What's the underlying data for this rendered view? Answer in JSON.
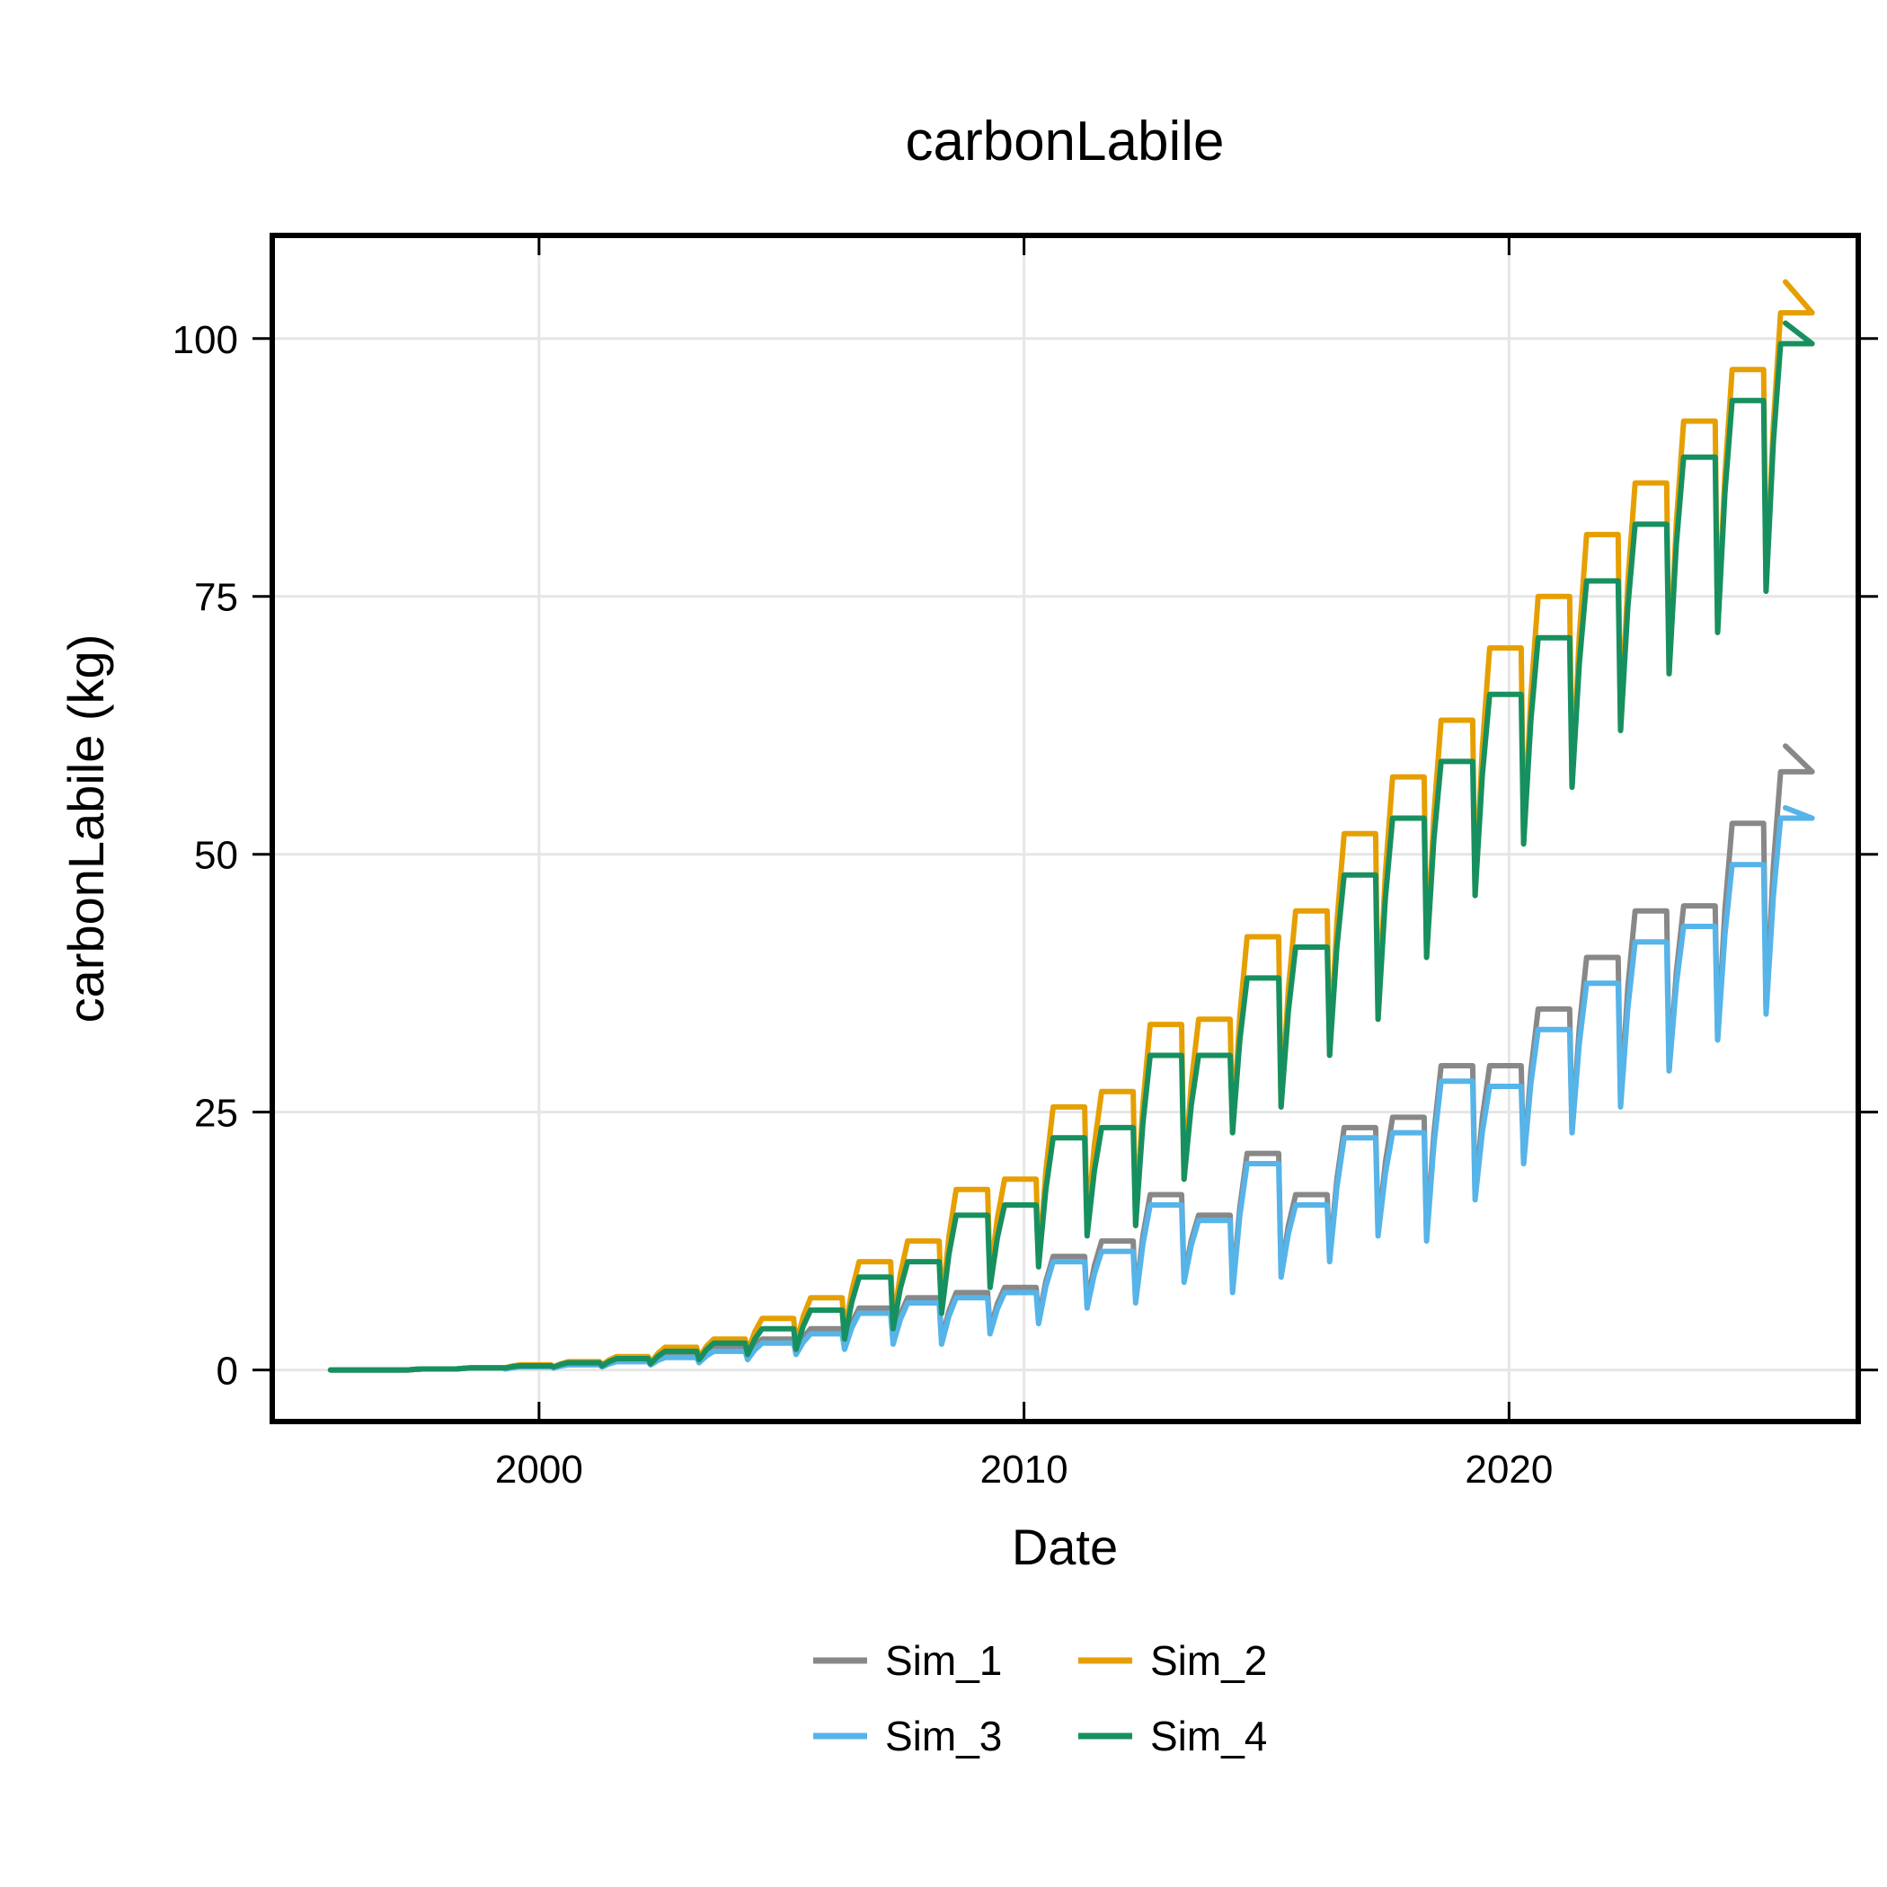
{
  "chart_data": {
    "type": "line",
    "title": "carbonLabile",
    "xlabel": "Date",
    "ylabel": "carbonLabile (kg)",
    "xlim": [
      1994.5,
      2027.2
    ],
    "ylim": [
      -5,
      110
    ],
    "x_ticks": [
      2000,
      2010,
      2020
    ],
    "y_ticks": [
      0,
      25,
      50,
      75,
      100
    ],
    "grid": true,
    "legend": {
      "position": "bottom",
      "columns": 2
    },
    "series": [
      {
        "name": "Sim_1",
        "color": "#888888",
        "annual": [
          {
            "year": 1996,
            "plateau": 0,
            "drop": 0
          },
          {
            "year": 1997,
            "plateau": 0.1,
            "drop": 0
          },
          {
            "year": 1998,
            "plateau": 0.2,
            "drop": 0.1
          },
          {
            "year": 1999,
            "plateau": 0.4,
            "drop": 0.2
          },
          {
            "year": 2000,
            "plateau": 0.7,
            "drop": 0.2
          },
          {
            "year": 2001,
            "plateau": 1.0,
            "drop": 0.4
          },
          {
            "year": 2002,
            "plateau": 1.5,
            "drop": 0.6
          },
          {
            "year": 2003,
            "plateau": 2.1,
            "drop": 0.8
          },
          {
            "year": 2004,
            "plateau": 3.0,
            "drop": 1.3
          },
          {
            "year": 2005,
            "plateau": 4.0,
            "drop": 1.9
          },
          {
            "year": 2006,
            "plateau": 6.0,
            "drop": 2.5
          },
          {
            "year": 2007,
            "plateau": 7.0,
            "drop": 3.0
          },
          {
            "year": 2008,
            "plateau": 7.5,
            "drop": 3.0
          },
          {
            "year": 2009,
            "plateau": 8.0,
            "drop": 4.0
          },
          {
            "year": 2010,
            "plateau": 11.0,
            "drop": 5.0
          },
          {
            "year": 2011,
            "plateau": 12.5,
            "drop": 6.5
          },
          {
            "year": 2012,
            "plateau": 17.0,
            "drop": 7.0
          },
          {
            "year": 2013,
            "plateau": 15.0,
            "drop": 9.0
          },
          {
            "year": 2014,
            "plateau": 21.0,
            "drop": 8.0
          },
          {
            "year": 2015,
            "plateau": 17.0,
            "drop": 9.5
          },
          {
            "year": 2016,
            "plateau": 23.5,
            "drop": 11.0
          },
          {
            "year": 2017,
            "plateau": 24.5,
            "drop": 13.5
          },
          {
            "year": 2018,
            "plateau": 29.5,
            "drop": 13.0
          },
          {
            "year": 2019,
            "plateau": 29.5,
            "drop": 17.0
          },
          {
            "year": 2020,
            "plateau": 35.0,
            "drop": 20.0
          },
          {
            "year": 2021,
            "plateau": 40.0,
            "drop": 23.0
          },
          {
            "year": 2022,
            "plateau": 44.5,
            "drop": 26.0
          },
          {
            "year": 2023,
            "plateau": 45.0,
            "drop": 29.0
          },
          {
            "year": 2024,
            "plateau": 53.0,
            "drop": 32.0
          },
          {
            "year": 2025,
            "plateau": 58.0,
            "drop": 35.0
          }
        ],
        "final": {
          "x": 2025.7,
          "y": 60.5
        }
      },
      {
        "name": "Sim_2",
        "color": "#E69F00",
        "annual": [
          {
            "year": 1996,
            "plateau": 0,
            "drop": 0
          },
          {
            "year": 1997,
            "plateau": 0.1,
            "drop": 0
          },
          {
            "year": 1998,
            "plateau": 0.2,
            "drop": 0.1
          },
          {
            "year": 1999,
            "plateau": 0.5,
            "drop": 0.2
          },
          {
            "year": 2000,
            "plateau": 0.8,
            "drop": 0.3
          },
          {
            "year": 2001,
            "plateau": 1.3,
            "drop": 0.5
          },
          {
            "year": 2002,
            "plateau": 2.2,
            "drop": 0.7
          },
          {
            "year": 2003,
            "plateau": 3.0,
            "drop": 1.2
          },
          {
            "year": 2004,
            "plateau": 5.0,
            "drop": 1.8
          },
          {
            "year": 2005,
            "plateau": 7.0,
            "drop": 2.5
          },
          {
            "year": 2006,
            "plateau": 10.5,
            "drop": 3.5
          },
          {
            "year": 2007,
            "plateau": 12.5,
            "drop": 4.5
          },
          {
            "year": 2008,
            "plateau": 17.5,
            "drop": 6.0
          },
          {
            "year": 2009,
            "plateau": 18.5,
            "drop": 9.0
          },
          {
            "year": 2010,
            "plateau": 25.5,
            "drop": 10.0
          },
          {
            "year": 2011,
            "plateau": 27.0,
            "drop": 14.0
          },
          {
            "year": 2012,
            "plateau": 33.5,
            "drop": 14.0
          },
          {
            "year": 2013,
            "plateau": 34.0,
            "drop": 18.5
          },
          {
            "year": 2014,
            "plateau": 42.0,
            "drop": 23.0
          },
          {
            "year": 2015,
            "plateau": 44.5,
            "drop": 25.5
          },
          {
            "year": 2016,
            "plateau": 52.0,
            "drop": 30.5
          },
          {
            "year": 2017,
            "plateau": 57.5,
            "drop": 34.0
          },
          {
            "year": 2018,
            "plateau": 63.0,
            "drop": 40.0
          },
          {
            "year": 2019,
            "plateau": 70.0,
            "drop": 46.0
          },
          {
            "year": 2020,
            "plateau": 75.0,
            "drop": 51.0
          },
          {
            "year": 2021,
            "plateau": 81.0,
            "drop": 56.5
          },
          {
            "year": 2022,
            "plateau": 86.0,
            "drop": 62.0
          },
          {
            "year": 2023,
            "plateau": 92.0,
            "drop": 67.5
          },
          {
            "year": 2024,
            "plateau": 97.0,
            "drop": 71.5
          },
          {
            "year": 2025,
            "plateau": 102.5,
            "drop": 75.5
          }
        ],
        "final": {
          "x": 2025.7,
          "y": 105.5
        }
      },
      {
        "name": "Sim_3",
        "color": "#56B4E9",
        "annual": [
          {
            "year": 1996,
            "plateau": 0,
            "drop": 0
          },
          {
            "year": 1997,
            "plateau": 0.1,
            "drop": 0
          },
          {
            "year": 1998,
            "plateau": 0.2,
            "drop": 0.1
          },
          {
            "year": 1999,
            "plateau": 0.3,
            "drop": 0.1
          },
          {
            "year": 2000,
            "plateau": 0.5,
            "drop": 0.2
          },
          {
            "year": 2001,
            "plateau": 0.8,
            "drop": 0.3
          },
          {
            "year": 2002,
            "plateau": 1.2,
            "drop": 0.5
          },
          {
            "year": 2003,
            "plateau": 1.8,
            "drop": 0.7
          },
          {
            "year": 2004,
            "plateau": 2.6,
            "drop": 1.0
          },
          {
            "year": 2005,
            "plateau": 3.5,
            "drop": 1.5
          },
          {
            "year": 2006,
            "plateau": 5.5,
            "drop": 2.0
          },
          {
            "year": 2007,
            "plateau": 6.5,
            "drop": 2.5
          },
          {
            "year": 2008,
            "plateau": 7.0,
            "drop": 2.5
          },
          {
            "year": 2009,
            "plateau": 7.5,
            "drop": 3.5
          },
          {
            "year": 2010,
            "plateau": 10.5,
            "drop": 4.5
          },
          {
            "year": 2011,
            "plateau": 11.5,
            "drop": 6.0
          },
          {
            "year": 2012,
            "plateau": 16.0,
            "drop": 6.5
          },
          {
            "year": 2013,
            "plateau": 14.5,
            "drop": 8.5
          },
          {
            "year": 2014,
            "plateau": 20.0,
            "drop": 7.5
          },
          {
            "year": 2015,
            "plateau": 16.0,
            "drop": 9.0
          },
          {
            "year": 2016,
            "plateau": 22.5,
            "drop": 10.5
          },
          {
            "year": 2017,
            "plateau": 23.0,
            "drop": 13.0
          },
          {
            "year": 2018,
            "plateau": 28.0,
            "drop": 12.5
          },
          {
            "year": 2019,
            "plateau": 27.5,
            "drop": 16.5
          },
          {
            "year": 2020,
            "plateau": 33.0,
            "drop": 20.0
          },
          {
            "year": 2021,
            "plateau": 37.5,
            "drop": 23.0
          },
          {
            "year": 2022,
            "plateau": 41.5,
            "drop": 25.5
          },
          {
            "year": 2023,
            "plateau": 43.0,
            "drop": 29.0
          },
          {
            "year": 2024,
            "plateau": 49.0,
            "drop": 32.0
          },
          {
            "year": 2025,
            "plateau": 53.5,
            "drop": 34.5
          }
        ],
        "final": {
          "x": 2025.7,
          "y": 54.5
        }
      },
      {
        "name": "Sim_4",
        "color": "#17905F",
        "annual": [
          {
            "year": 1996,
            "plateau": 0,
            "drop": 0
          },
          {
            "year": 1997,
            "plateau": 0.1,
            "drop": 0
          },
          {
            "year": 1998,
            "plateau": 0.2,
            "drop": 0.1
          },
          {
            "year": 1999,
            "plateau": 0.4,
            "drop": 0.2
          },
          {
            "year": 2000,
            "plateau": 0.7,
            "drop": 0.3
          },
          {
            "year": 2001,
            "plateau": 1.1,
            "drop": 0.4
          },
          {
            "year": 2002,
            "plateau": 1.8,
            "drop": 0.6
          },
          {
            "year": 2003,
            "plateau": 2.6,
            "drop": 1.0
          },
          {
            "year": 2004,
            "plateau": 4.0,
            "drop": 1.5
          },
          {
            "year": 2005,
            "plateau": 5.8,
            "drop": 2.0
          },
          {
            "year": 2006,
            "plateau": 9.0,
            "drop": 3.0
          },
          {
            "year": 2007,
            "plateau": 10.5,
            "drop": 4.0
          },
          {
            "year": 2008,
            "plateau": 15.0,
            "drop": 5.5
          },
          {
            "year": 2009,
            "plateau": 16.0,
            "drop": 8.0
          },
          {
            "year": 2010,
            "plateau": 22.5,
            "drop": 10.0
          },
          {
            "year": 2011,
            "plateau": 23.5,
            "drop": 13.0
          },
          {
            "year": 2012,
            "plateau": 30.5,
            "drop": 14.0
          },
          {
            "year": 2013,
            "plateau": 30.5,
            "drop": 18.5
          },
          {
            "year": 2014,
            "plateau": 38.0,
            "drop": 23.0
          },
          {
            "year": 2015,
            "plateau": 41.0,
            "drop": 25.5
          },
          {
            "year": 2016,
            "plateau": 48.0,
            "drop": 30.5
          },
          {
            "year": 2017,
            "plateau": 53.5,
            "drop": 34.0
          },
          {
            "year": 2018,
            "plateau": 59.0,
            "drop": 40.0
          },
          {
            "year": 2019,
            "plateau": 65.5,
            "drop": 46.0
          },
          {
            "year": 2020,
            "plateau": 71.0,
            "drop": 51.0
          },
          {
            "year": 2021,
            "plateau": 76.5,
            "drop": 56.5
          },
          {
            "year": 2022,
            "plateau": 82.0,
            "drop": 62.0
          },
          {
            "year": 2023,
            "plateau": 88.5,
            "drop": 67.5
          },
          {
            "year": 2024,
            "plateau": 94.0,
            "drop": 71.5
          },
          {
            "year": 2025,
            "plateau": 99.5,
            "drop": 75.5
          }
        ],
        "final": {
          "x": 2025.7,
          "y": 101.5
        }
      }
    ]
  }
}
